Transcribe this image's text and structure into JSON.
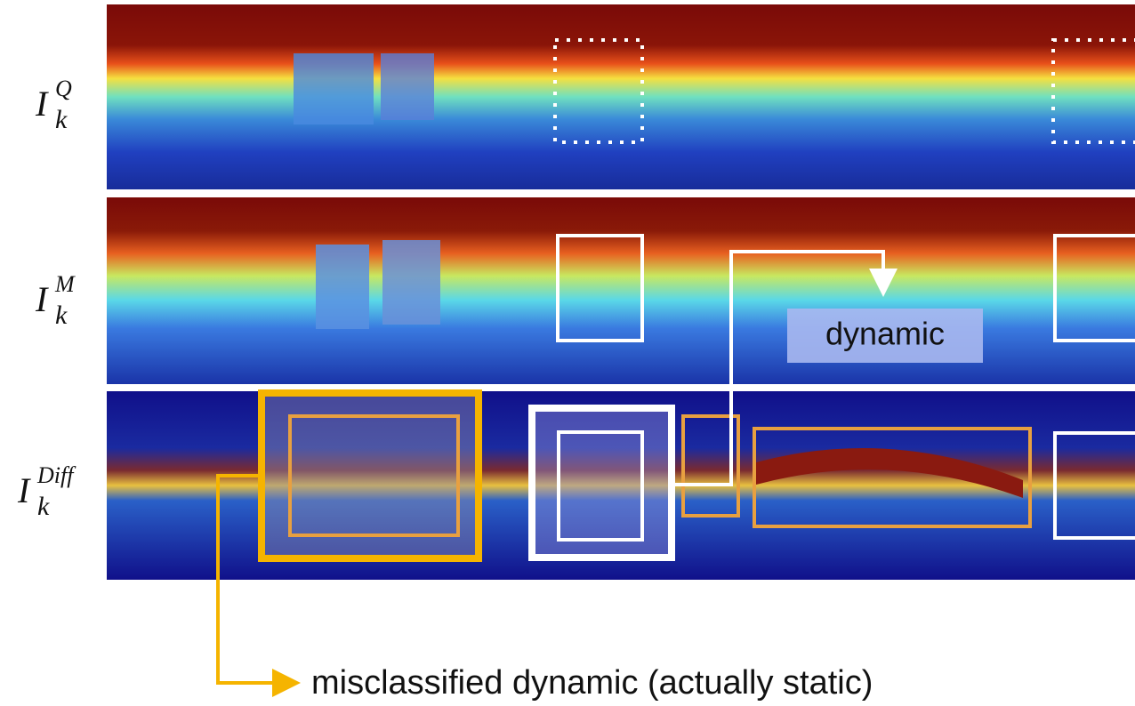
{
  "labels": [
    {
      "base": "I",
      "sub": "k",
      "sup": "Q"
    },
    {
      "base": "I",
      "sub": "k",
      "sup": "M"
    },
    {
      "base": "I",
      "sub": "k",
      "sup": "Diff"
    }
  ],
  "annotations": {
    "dynamic": "dynamic",
    "misclassified": "misclassified dynamic (actually static)"
  }
}
